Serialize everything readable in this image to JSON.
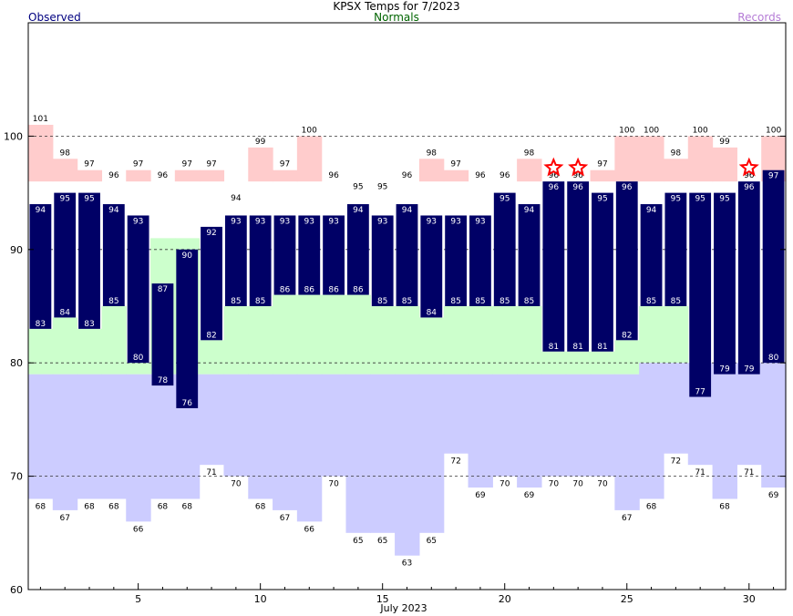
{
  "title": "KPSX Temps for 7/2023",
  "legend": {
    "observed": "Observed",
    "normals": "Normals",
    "records": "Records"
  },
  "colors": {
    "observed": "#000066",
    "normal_band": "#ccffcc",
    "record_high": "#ffcccc",
    "record_low": "#ccccff",
    "star": "#ff0000",
    "legend_observed": "#000080",
    "legend_normals": "#006400",
    "legend_records": "#b57cd6"
  },
  "chart_data": {
    "type": "bar",
    "title": "KPSX Temps for 7/2023",
    "xlabel": "July 2023",
    "ylabel": "",
    "ylim": [
      60,
      110
    ],
    "x_range": [
      0.5,
      31.5
    ],
    "yticks": [
      60,
      70,
      80,
      90,
      100
    ],
    "xticks": [
      5,
      10,
      15,
      20,
      25,
      30
    ],
    "grid_dashed_at": [
      70,
      80,
      90,
      100
    ],
    "days": [
      1,
      2,
      3,
      4,
      5,
      6,
      7,
      8,
      9,
      10,
      11,
      12,
      13,
      14,
      15,
      16,
      17,
      18,
      19,
      20,
      21,
      22,
      23,
      24,
      25,
      26,
      27,
      28,
      29,
      30,
      31
    ],
    "observed_high": [
      94,
      95,
      95,
      94,
      93,
      87,
      90,
      92,
      93,
      93,
      93,
      93,
      93,
      94,
      93,
      94,
      93,
      93,
      93,
      95,
      94,
      96,
      96,
      95,
      96,
      94,
      95,
      95,
      95,
      96,
      97
    ],
    "observed_low": [
      83,
      84,
      83,
      85,
      80,
      78,
      76,
      82,
      85,
      85,
      86,
      86,
      86,
      86,
      85,
      85,
      84,
      85,
      85,
      85,
      85,
      81,
      81,
      81,
      82,
      85,
      85,
      77,
      79,
      79,
      80
    ],
    "record_high": [
      101,
      98,
      97,
      96,
      97,
      96,
      97,
      97,
      94,
      99,
      97,
      100,
      96,
      95,
      95,
      96,
      98,
      97,
      96,
      96,
      98,
      96,
      96,
      97,
      100,
      100,
      98,
      100,
      99,
      96,
      100
    ],
    "record_low": [
      68,
      67,
      68,
      68,
      66,
      68,
      68,
      71,
      70,
      68,
      67,
      66,
      70,
      65,
      65,
      63,
      65,
      72,
      69,
      70,
      69,
      70,
      70,
      70,
      67,
      68,
      72,
      71,
      68,
      71,
      69
    ],
    "normal_high": [
      96,
      96,
      96,
      96,
      96,
      96,
      96,
      96,
      96,
      96,
      96,
      96,
      96,
      96,
      96,
      96,
      96,
      96,
      96,
      96,
      96,
      96,
      96,
      96,
      96,
      96,
      96,
      96,
      96,
      96,
      96
    ],
    "normal_low": [
      79,
      79,
      79,
      79,
      79,
      79,
      79,
      79,
      79,
      79,
      79,
      79,
      79,
      79,
      79,
      79,
      79,
      79,
      79,
      79,
      79,
      79,
      79,
      79,
      79,
      80,
      80,
      80,
      80,
      80,
      80
    ],
    "normal_band_top": [
      83,
      84,
      83,
      85,
      80,
      91,
      91,
      82,
      85,
      85,
      86,
      86,
      86,
      86,
      85,
      85,
      84,
      85,
      85,
      85,
      85,
      81,
      81,
      81,
      82,
      85,
      85,
      80,
      80,
      80,
      80
    ],
    "record_set_days": [
      22,
      23,
      30
    ]
  },
  "x_axis_label": "July 2023"
}
